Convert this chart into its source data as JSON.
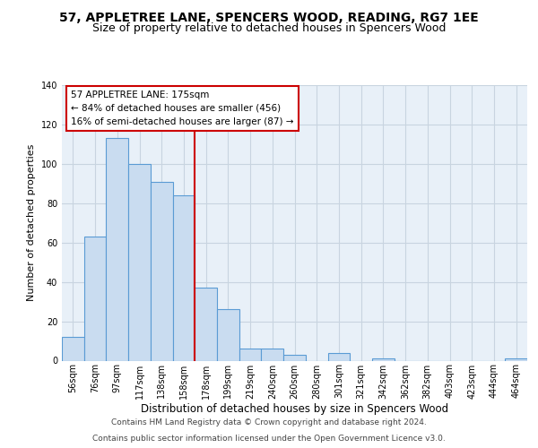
{
  "title": "57, APPLETREE LANE, SPENCERS WOOD, READING, RG7 1EE",
  "subtitle": "Size of property relative to detached houses in Spencers Wood",
  "xlabel": "Distribution of detached houses by size in Spencers Wood",
  "ylabel": "Number of detached properties",
  "bar_labels": [
    "56sqm",
    "76sqm",
    "97sqm",
    "117sqm",
    "138sqm",
    "158sqm",
    "178sqm",
    "199sqm",
    "219sqm",
    "240sqm",
    "260sqm",
    "280sqm",
    "301sqm",
    "321sqm",
    "342sqm",
    "362sqm",
    "382sqm",
    "403sqm",
    "423sqm",
    "444sqm",
    "464sqm"
  ],
  "bar_values": [
    12,
    63,
    113,
    100,
    91,
    84,
    37,
    26,
    6,
    6,
    3,
    0,
    4,
    0,
    1,
    0,
    0,
    0,
    0,
    0,
    1
  ],
  "bar_color": "#c9dcf0",
  "bar_edge_color": "#5a9bd4",
  "vline_x": 5.5,
  "vline_color": "#cc0000",
  "ylim": [
    0,
    140
  ],
  "yticks": [
    0,
    20,
    40,
    60,
    80,
    100,
    120,
    140
  ],
  "annotation_title": "57 APPLETREE LANE: 175sqm",
  "annotation_line1": "← 84% of detached houses are smaller (456)",
  "annotation_line2": "16% of semi-detached houses are larger (87) →",
  "annotation_box_color": "#ffffff",
  "annotation_box_edge": "#cc0000",
  "footer_line1": "Contains HM Land Registry data © Crown copyright and database right 2024.",
  "footer_line2": "Contains public sector information licensed under the Open Government Licence v3.0.",
  "bg_color": "#ffffff",
  "plot_bg_color": "#e8f0f8",
  "grid_color": "#c8d4e0",
  "title_fontsize": 10,
  "subtitle_fontsize": 9,
  "xlabel_fontsize": 8.5,
  "ylabel_fontsize": 8,
  "tick_fontsize": 7,
  "footer_fontsize": 6.5,
  "ann_fontsize": 7.5
}
